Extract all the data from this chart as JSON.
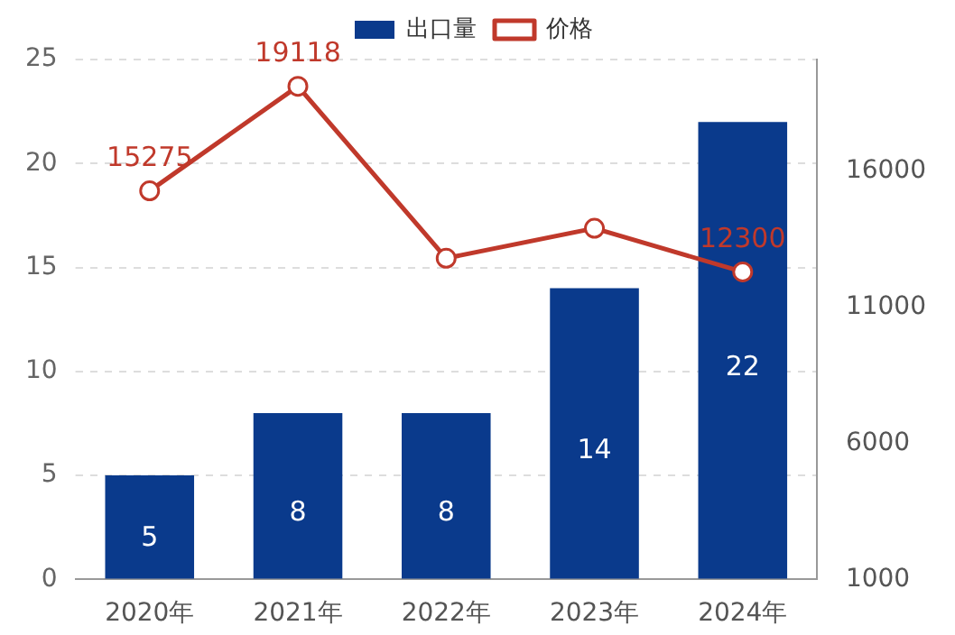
{
  "chart_data": {
    "type": "bar",
    "categories": [
      "2020年",
      "2021年",
      "2022年",
      "2023年",
      "2024年"
    ],
    "series": [
      {
        "name": "出口量",
        "color": "#0a3a8c",
        "values": [
          5,
          8,
          8,
          14,
          22
        ],
        "value_labels": [
          "5",
          "8",
          "8",
          "14",
          "22"
        ]
      },
      {
        "name": "价格",
        "type": "line",
        "axis": "y2",
        "color": "#c0392b",
        "values": [
          15275,
          19118,
          12800,
          13900,
          12300
        ],
        "value_labels": [
          "15275",
          "19118",
          null,
          null,
          "12300"
        ]
      }
    ],
    "ylim": [
      0,
      25
    ],
    "yticks": [
      0,
      5,
      10,
      15,
      20,
      25
    ],
    "y2lim": [
      1000,
      20100
    ],
    "y2ticks": [
      1000,
      6000,
      11000,
      16000
    ],
    "grid": "y",
    "legend": "top",
    "marker": "circle"
  }
}
